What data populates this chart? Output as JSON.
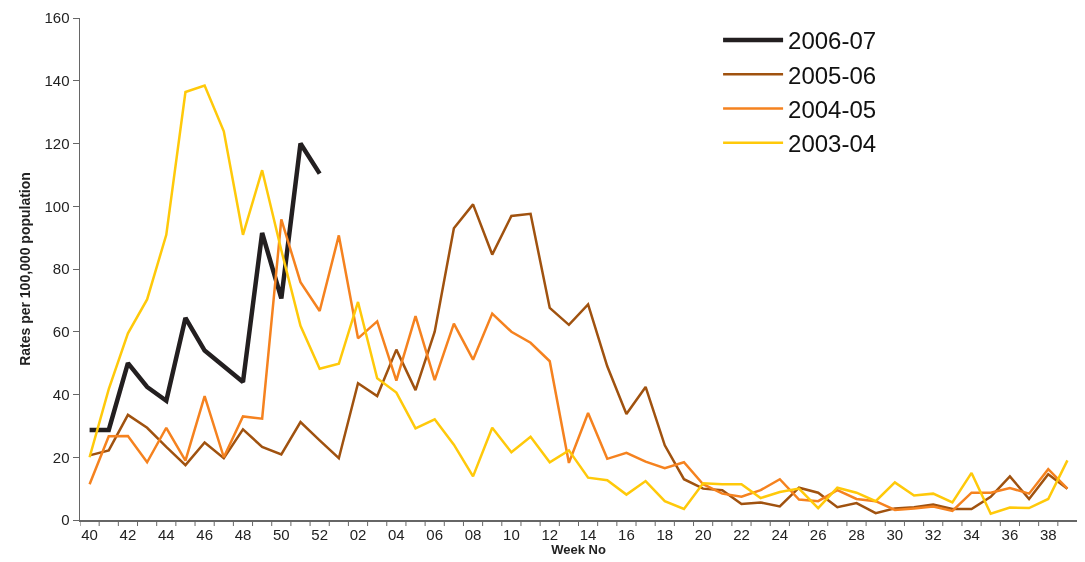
{
  "chart_data": {
    "type": "line",
    "xlabel": "Week No",
    "ylabel": "Rates per 100,000 population",
    "categories": [
      "40",
      null,
      "42",
      null,
      "44",
      null,
      "46",
      null,
      "48",
      null,
      "50",
      null,
      "52",
      null,
      "02",
      null,
      "04",
      null,
      "06",
      null,
      "08",
      null,
      "10",
      null,
      "12",
      null,
      "14",
      null,
      "16",
      null,
      "18",
      null,
      "20",
      null,
      "22",
      null,
      "24",
      null,
      "26",
      null,
      "28",
      null,
      "30",
      null,
      "32",
      null,
      "34",
      null,
      "36",
      null,
      "38",
      null
    ],
    "ylim": [
      0,
      160
    ],
    "yticks": [
      0,
      20,
      40,
      60,
      80,
      100,
      120,
      140,
      160
    ],
    "grid": false,
    "legend": "top right",
    "marker": "none",
    "line_style": "solid",
    "series": [
      {
        "name": "2006-07",
        "color": "#231f20",
        "values": [
          28.7,
          28.7,
          50,
          42.4,
          38,
          64.4,
          54,
          49,
          44,
          91.5,
          70.6,
          120,
          110.4,
          null,
          null,
          null,
          null,
          null,
          null,
          null,
          null,
          null,
          null,
          null,
          null,
          null,
          null,
          null,
          null,
          null,
          null,
          null,
          null,
          null,
          null,
          null,
          null,
          null,
          null,
          null,
          null,
          null,
          null,
          null,
          null,
          null,
          null,
          null,
          null,
          null,
          null,
          null
        ]
      },
      {
        "name": "2005-06",
        "color": "#a0520f",
        "values": [
          20.6,
          22.2,
          33.5,
          29.4,
          23.3,
          17.5,
          24.7,
          19.7,
          28.9,
          23.3,
          20.9,
          31.2,
          25.4,
          19.7,
          43.6,
          39.5,
          54.3,
          41.4,
          60,
          93,
          100.6,
          84.6,
          96.9,
          97.6,
          67.6,
          62.2,
          68.7,
          49,
          33.8,
          42.4,
          23.8,
          13,
          10,
          9.5,
          5.1,
          5.6,
          4.3,
          10.3,
          8.7,
          4.1,
          5.4,
          2.2,
          3.7,
          4.1,
          4.9,
          3.5,
          3.5,
          7.4,
          13.9,
          6.7,
          14.6,
          10
        ]
      },
      {
        "name": "2004-05",
        "color": "#f5821f",
        "values": [
          11.4,
          26.7,
          26.8,
          18.4,
          29.4,
          18.9,
          39.5,
          20,
          33,
          32.3,
          95.8,
          75.8,
          66.6,
          90.7,
          57.9,
          63.3,
          44.4,
          65,
          44.6,
          62.6,
          51.1,
          65.8,
          60,
          56.5,
          50.6,
          18.2,
          34.1,
          19.5,
          21.4,
          18.6,
          16.5,
          18.4,
          11.4,
          8.4,
          7.4,
          9.5,
          13,
          6.5,
          6,
          9.5,
          6.7,
          6,
          3.2,
          3.7,
          4.3,
          2.9,
          8.7,
          8.7,
          10.2,
          8.4,
          16.2,
          10
        ]
      },
      {
        "name": "2003-04",
        "color": "#ffc90a",
        "values": [
          20,
          41.7,
          59.5,
          70.3,
          90.9,
          136.4,
          138.5,
          123.9,
          90.9,
          111.5,
          86,
          61.9,
          48.2,
          49.8,
          69.5,
          45.2,
          40.6,
          29.2,
          32.1,
          24,
          13.9,
          29.4,
          21.6,
          26.5,
          18.4,
          22.2,
          13.5,
          12.7,
          8.1,
          12.4,
          6,
          3.5,
          11.7,
          11.4,
          11.4,
          7,
          8.9,
          10,
          3.8,
          10.3,
          8.7,
          6,
          12,
          7.8,
          8.4,
          5.6,
          15,
          2,
          4,
          3.8,
          6.7,
          19
        ]
      }
    ]
  }
}
